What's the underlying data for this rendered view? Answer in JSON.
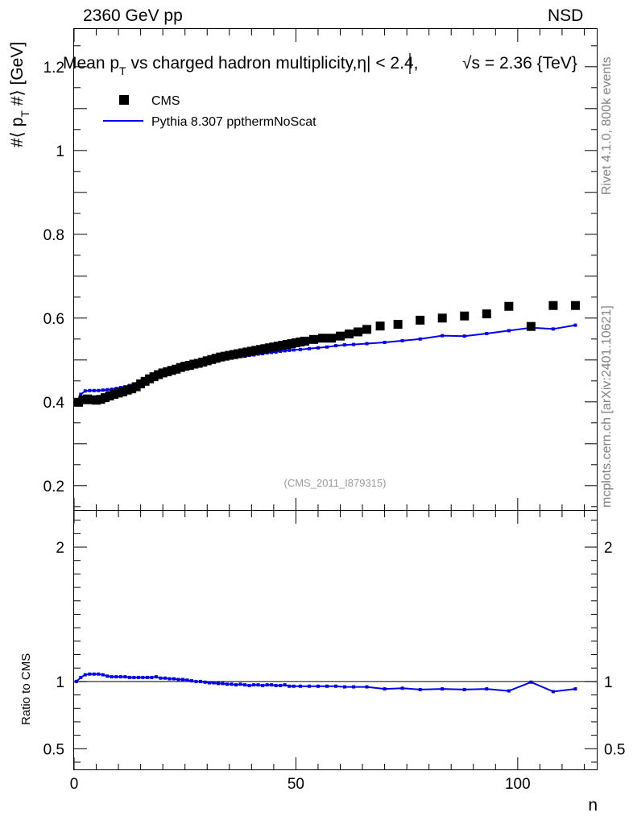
{
  "header": {
    "left": "2360 GeV pp",
    "right": "NSD"
  },
  "side_labels": {
    "rivet": "Rivet 4.1.0,  800k events",
    "mcplots": "mcplots.cern.ch [arXiv:2401.10621]"
  },
  "chart_data": {
    "type": "scatter",
    "title": "Mean p_T vs charged hadron multiplicity, |η| < 2.4, √s = 2.36 {TeV}",
    "title_parts": {
      "a": "Mean p",
      "a_sub": "T",
      "b": " vs charged hadron multiplicity,",
      "c": "η| < 2.4, ",
      "d": "√s = 2.36 {TeV}"
    },
    "analysis_tag": "(CMS_2011_I879315)",
    "xlabel": "n",
    "ylabel": "#⟨ p_T #⟩ [GeV]",
    "ylabel_parts": {
      "a": "#⟨ p",
      "sub": "T",
      "b": " #⟩ [GeV]"
    },
    "xlim": [
      0,
      118
    ],
    "ylim": [
      0.14,
      1.29
    ],
    "xticks": [
      "0",
      "50",
      "100"
    ],
    "yticks": [
      "0.2",
      "0.4",
      "0.6",
      "0.8",
      "1",
      "1.2"
    ],
    "legend": [
      {
        "name": "CMS",
        "marker": "square",
        "color": "#000000"
      },
      {
        "name": "Pythia 8.307 ppthermNoScat",
        "marker": "line",
        "color": "#0000ee"
      }
    ],
    "series": [
      {
        "name": "CMS",
        "x": [
          1,
          2,
          3,
          4,
          5,
          6,
          7,
          8,
          9,
          10,
          11,
          12,
          13,
          14,
          15,
          16,
          17,
          18,
          19,
          20,
          21,
          22,
          23,
          24,
          25,
          26,
          27,
          28,
          29,
          30,
          31,
          32,
          33,
          34,
          35,
          36,
          37,
          38,
          39,
          40,
          41,
          42,
          43,
          44,
          45,
          46,
          47,
          48,
          49,
          50,
          51,
          52,
          54,
          56,
          58,
          60,
          62,
          64,
          66,
          69,
          73,
          78,
          83,
          88,
          93,
          98,
          103,
          108,
          113
        ],
        "values": [
          0.399,
          0.405,
          0.407,
          0.405,
          0.404,
          0.406,
          0.41,
          0.414,
          0.418,
          0.421,
          0.424,
          0.428,
          0.431,
          0.436,
          0.443,
          0.449,
          0.455,
          0.46,
          0.465,
          0.469,
          0.472,
          0.475,
          0.478,
          0.482,
          0.485,
          0.487,
          0.49,
          0.492,
          0.495,
          0.498,
          0.501,
          0.504,
          0.507,
          0.509,
          0.511,
          0.513,
          0.515,
          0.517,
          0.519,
          0.521,
          0.523,
          0.525,
          0.527,
          0.529,
          0.531,
          0.533,
          0.535,
          0.537,
          0.539,
          0.541,
          0.543,
          0.545,
          0.549,
          0.552,
          0.552,
          0.557,
          0.562,
          0.567,
          0.573,
          0.581,
          0.585,
          0.595,
          0.6,
          0.605,
          0.61,
          0.628,
          0.58,
          0.63,
          0.63
        ]
      },
      {
        "name": "Pythia 8.307 ppthermNoScat",
        "x": [
          0.5,
          1.5,
          2.5,
          3.5,
          4.5,
          5.5,
          6.5,
          7.5,
          8.5,
          9.5,
          10.5,
          11.5,
          12.5,
          13.5,
          14.5,
          15.5,
          16.5,
          17.5,
          18.5,
          19.5,
          20.5,
          21.5,
          22.5,
          23.5,
          24.5,
          25.5,
          26.5,
          27.5,
          28.5,
          29.5,
          30.5,
          31.5,
          32.5,
          33.5,
          34.5,
          35.5,
          36.5,
          37.5,
          38.5,
          39.5,
          40.5,
          41.5,
          42.5,
          43.5,
          44.5,
          45.5,
          46.5,
          47.5,
          48.5,
          49.5,
          51,
          53,
          55,
          57,
          59,
          61,
          63,
          66,
          70,
          74,
          78,
          83,
          88,
          93,
          98,
          103,
          108,
          113
        ],
        "values": [
          0.398,
          0.418,
          0.426,
          0.427,
          0.427,
          0.427,
          0.428,
          0.429,
          0.43,
          0.432,
          0.434,
          0.436,
          0.439,
          0.443,
          0.448,
          0.453,
          0.458,
          0.463,
          0.468,
          0.471,
          0.474,
          0.476,
          0.479,
          0.481,
          0.484,
          0.486,
          0.488,
          0.49,
          0.492,
          0.494,
          0.497,
          0.499,
          0.5,
          0.502,
          0.503,
          0.505,
          0.506,
          0.508,
          0.509,
          0.511,
          0.512,
          0.514,
          0.515,
          0.517,
          0.518,
          0.519,
          0.521,
          0.522,
          0.523,
          0.524,
          0.525,
          0.527,
          0.529,
          0.531,
          0.534,
          0.536,
          0.537,
          0.539,
          0.542,
          0.546,
          0.55,
          0.558,
          0.557,
          0.563,
          0.57,
          0.577,
          0.574,
          0.583
        ]
      }
    ],
    "ratio": {
      "ylabel": "Ratio to CMS",
      "ylim": [
        0.34,
        2.27
      ],
      "yticks": [
        "0.5",
        "1",
        "2"
      ],
      "x": [
        0.5,
        1.5,
        2.5,
        3.5,
        4.5,
        5.5,
        6.5,
        7.5,
        8.5,
        9.5,
        10.5,
        11.5,
        12.5,
        13.5,
        14.5,
        15.5,
        16.5,
        17.5,
        18.5,
        19.5,
        20.5,
        21.5,
        22.5,
        23.5,
        24.5,
        25.5,
        26.5,
        27.5,
        28.5,
        29.5,
        30.5,
        31.5,
        32.5,
        33.5,
        34.5,
        35.5,
        36.5,
        37.5,
        38.5,
        39.5,
        40.5,
        41.5,
        42.5,
        43.5,
        44.5,
        45.5,
        46.5,
        47.5,
        48.5,
        49.5,
        51,
        53,
        55,
        57,
        59,
        61,
        63,
        66,
        70,
        74,
        78,
        83,
        88,
        93,
        98,
        103,
        108,
        113
      ],
      "values": [
        1.0,
        1.03,
        1.05,
        1.055,
        1.055,
        1.055,
        1.05,
        1.04,
        1.035,
        1.035,
        1.035,
        1.035,
        1.03,
        1.03,
        1.03,
        1.03,
        1.03,
        1.03,
        1.035,
        1.025,
        1.025,
        1.02,
        1.02,
        1.015,
        1.015,
        1.01,
        1.005,
        1.0,
        1.0,
        0.995,
        0.99,
        0.99,
        0.985,
        0.985,
        0.98,
        0.98,
        0.975,
        0.98,
        0.975,
        0.97,
        0.975,
        0.975,
        0.97,
        0.975,
        0.975,
        0.97,
        0.97,
        0.975,
        0.965,
        0.965,
        0.965,
        0.965,
        0.965,
        0.965,
        0.965,
        0.96,
        0.96,
        0.96,
        0.945,
        0.95,
        0.94,
        0.945,
        0.94,
        0.945,
        0.93,
        0.995,
        0.925,
        0.945
      ]
    }
  }
}
